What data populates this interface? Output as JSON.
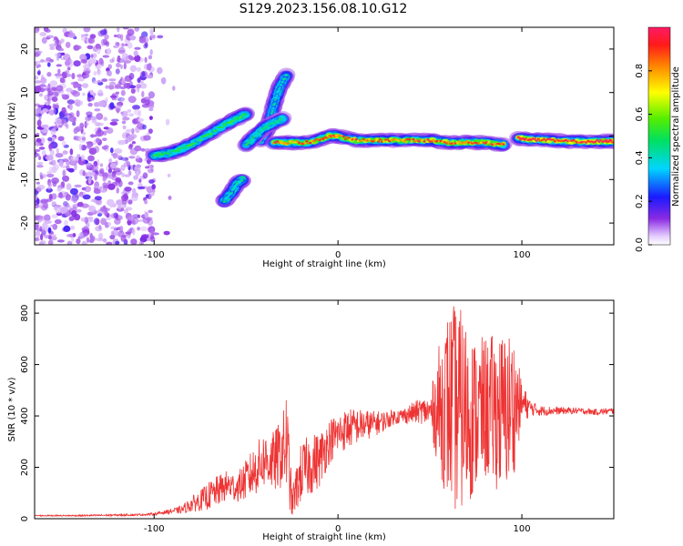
{
  "title": "S129.2023.156.08.10.G12",
  "charts": [
    {
      "type": "heatmap",
      "xlabel": "Height of straight line (km)",
      "ylabel": "Frequency (Hz)",
      "xlim": [
        -165,
        150
      ],
      "ylim": [
        -25,
        25
      ],
      "xticks": [
        -100,
        0,
        100
      ],
      "yticks": [
        -20,
        -10,
        0,
        10,
        20
      ],
      "colorbar": {
        "label": "Normalized spectral amplitude",
        "range": [
          0,
          1
        ],
        "ticks": [
          0.0,
          0.2,
          0.4,
          0.6,
          0.8
        ],
        "colormap": "hsv-rainbow (white/violet at 0, red/pink at 1)"
      },
      "ridge_segments": [
        {
          "x": [
            -100,
            -92,
            -85,
            -78,
            -70,
            -62,
            -55,
            -50
          ],
          "y": [
            -4.5,
            -4,
            -3,
            -1.5,
            0.5,
            2.5,
            4,
            5
          ],
          "amp": 0.5
        },
        {
          "x": [
            -42,
            -38,
            -35,
            -32,
            -28
          ],
          "y": [
            -1,
            2,
            7,
            11,
            14
          ],
          "amp": 0.4
        },
        {
          "x": [
            -50,
            -45,
            -40,
            -35,
            -30
          ],
          "y": [
            -2,
            0,
            2,
            3,
            4
          ],
          "amp": 0.45
        },
        {
          "x": [
            -62,
            -58,
            -55,
            -52
          ],
          "y": [
            -15,
            -13,
            -11,
            -10
          ],
          "amp": 0.4
        },
        {
          "x": [
            -35,
            -25,
            -15,
            -5,
            0,
            10,
            20,
            30,
            40,
            50,
            60,
            70,
            80,
            90
          ],
          "y": [
            -1.5,
            -1.5,
            -1.5,
            0,
            0,
            -1,
            -1,
            -1,
            -1,
            -1,
            -1.5,
            -1.5,
            -1.5,
            -2
          ],
          "amp": 0.85
        },
        {
          "x": [
            98,
            105,
            115,
            125,
            135,
            145,
            150
          ],
          "y": [
            -0.5,
            -0.8,
            -1,
            -1.2,
            -1.3,
            -1.2,
            -1.2
          ],
          "amp": 0.95
        }
      ],
      "noise_region": {
        "x": [
          -165,
          -100
        ],
        "y": [
          -25,
          25
        ],
        "amp": 0.15
      }
    },
    {
      "type": "line",
      "xlabel": "Height of straight line (km)",
      "ylabel": "SNR (10 * v/v)",
      "xlim": [
        -165,
        150
      ],
      "ylim": [
        0,
        850
      ],
      "xticks": [
        -100,
        0,
        100
      ],
      "yticks": [
        0,
        200,
        400,
        600,
        800
      ],
      "series": [
        {
          "color": "#ee3333",
          "x": [
            -165,
            -140,
            -110,
            -100,
            -90,
            -85,
            -80,
            -75,
            -70,
            -65,
            -60,
            -55,
            -50,
            -45,
            -40,
            -35,
            -30,
            -28,
            -25,
            -20,
            -15,
            -10,
            -5,
            0,
            5,
            10,
            15,
            20,
            25,
            30,
            35,
            40,
            45,
            50,
            55,
            60,
            65,
            70,
            75,
            80,
            85,
            90,
            95,
            100,
            105,
            110,
            120,
            130,
            140,
            150
          ],
          "y": [
            12,
            12,
            15,
            18,
            30,
            35,
            55,
            70,
            90,
            110,
            130,
            120,
            150,
            190,
            230,
            220,
            260,
            300,
            60,
            180,
            210,
            230,
            300,
            330,
            350,
            360,
            365,
            370,
            380,
            395,
            400,
            410,
            420,
            415,
            430,
            440,
            425,
            410,
            400,
            430,
            420,
            410,
            440,
            450,
            430,
            420,
            420,
            420,
            415,
            420
          ],
          "noise_amplitude": [
            2,
            3,
            4,
            5,
            10,
            15,
            30,
            40,
            55,
            60,
            60,
            55,
            80,
            100,
            110,
            120,
            140,
            220,
            60,
            120,
            120,
            110,
            90,
            80,
            80,
            70,
            60,
            50,
            40,
            30,
            30,
            40,
            50,
            60,
            250,
            380,
            420,
            360,
            300,
            280,
            300,
            320,
            300,
            80,
            30,
            20,
            15,
            12,
            12,
            12
          ]
        }
      ]
    }
  ]
}
